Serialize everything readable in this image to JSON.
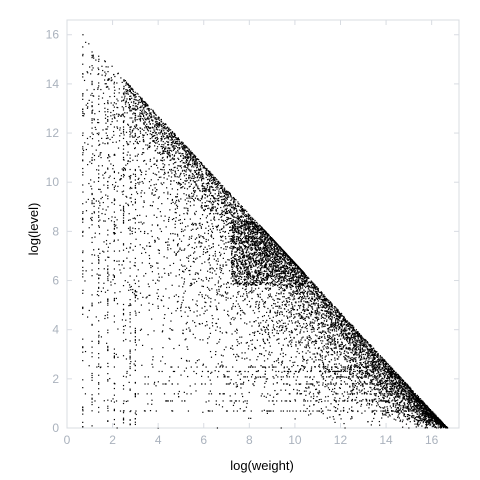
{
  "chart_data": {
    "type": "scatter",
    "title": "",
    "xlabel": "log(weight)",
    "ylabel": "log(level)",
    "xlim": [
      0,
      17.2
    ],
    "ylim": [
      0,
      16.6
    ],
    "xticks": [
      0,
      2,
      4,
      6,
      8,
      10,
      12,
      14,
      16
    ],
    "yticks": [
      0,
      2,
      4,
      6,
      8,
      10,
      12,
      14,
      16
    ],
    "xtick_labels": [
      "0",
      "2",
      "4",
      "6",
      "8",
      "10",
      "12",
      "14",
      "16"
    ],
    "ytick_labels": [
      "0",
      "2",
      "4",
      "6",
      "8",
      "10",
      "12",
      "14",
      "16"
    ],
    "grid": false,
    "marker_color": "#000000",
    "boundary": {
      "description": "points lie on or below the line",
      "x0": 0.7,
      "y0": 16.0,
      "x1": 16.7,
      "y1": 0.0
    },
    "dense_cluster_center": [
      8.8,
      7.1
    ],
    "column_stripes_x": [
      0.69,
      1.1,
      1.39,
      1.79,
      2.08,
      2.48,
      2.77,
      3.0
    ],
    "row_stripes_y": [
      0.69,
      1.1,
      1.39,
      1.79,
      2.08,
      2.3,
      2.48
    ],
    "series": [
      {
        "name": "",
        "points": [
          [
            0.7,
            16.0
          ],
          [
            0.7,
            15.2
          ],
          [
            0.7,
            14.4
          ],
          [
            0.7,
            13.6
          ],
          [
            0.7,
            12.8
          ],
          [
            0.7,
            12.0
          ],
          [
            0.7,
            11.2
          ],
          [
            0.7,
            10.4
          ],
          [
            0.7,
            9.6
          ],
          [
            0.7,
            8.8
          ],
          [
            0.7,
            8.0
          ],
          [
            0.7,
            7.2
          ],
          [
            0.7,
            6.4
          ],
          [
            0.7,
            5.6
          ],
          [
            1.1,
            15.3
          ],
          [
            1.1,
            14.1
          ],
          [
            1.1,
            12.9
          ],
          [
            1.1,
            11.0
          ],
          [
            1.1,
            9.5
          ],
          [
            1.1,
            6.7
          ],
          [
            1.1,
            2.9
          ],
          [
            1.4,
            15.0
          ],
          [
            1.4,
            13.5
          ],
          [
            1.4,
            12.0
          ],
          [
            1.4,
            11.5
          ],
          [
            1.4,
            6.8
          ],
          [
            1.4,
            3.5
          ],
          [
            1.8,
            14.5
          ],
          [
            1.8,
            13.2
          ],
          [
            1.8,
            11.8
          ],
          [
            1.8,
            9.0
          ],
          [
            1.8,
            6.0
          ],
          [
            1.8,
            2.5
          ],
          [
            2.1,
            14.3
          ],
          [
            2.1,
            12.6
          ],
          [
            2.1,
            11.1
          ],
          [
            2.1,
            8.2
          ],
          [
            2.1,
            5.5
          ],
          [
            2.1,
            1.8
          ],
          [
            2.5,
            13.9
          ],
          [
            2.5,
            12.5
          ],
          [
            2.5,
            10.9
          ],
          [
            2.5,
            8.8
          ],
          [
            2.5,
            6.5
          ],
          [
            2.5,
            4.0
          ],
          [
            2.5,
            1.1
          ],
          [
            2.8,
            13.5
          ],
          [
            2.8,
            12.0
          ],
          [
            2.8,
            10.0
          ],
          [
            2.8,
            7.5
          ],
          [
            2.8,
            5.0
          ],
          [
            2.8,
            2.7
          ],
          [
            2.8,
            0.7
          ],
          [
            3.0,
            13.2
          ],
          [
            3.0,
            11.4
          ],
          [
            3.0,
            9.3
          ],
          [
            3.0,
            6.9
          ],
          [
            3.0,
            3.9
          ],
          [
            3.0,
            1.4
          ],
          [
            0.7,
            0.7
          ],
          [
            1.1,
            0.7
          ],
          [
            1.8,
            0.7
          ],
          [
            2.5,
            0.7
          ],
          [
            3.4,
            0.7
          ],
          [
            4.6,
            0.7
          ],
          [
            6.2,
            0.7
          ],
          [
            7.8,
            0.7
          ],
          [
            2.2,
            0.0
          ],
          [
            4.0,
            0.0
          ],
          [
            6.6,
            0.0
          ],
          [
            9.4,
            0.0
          ],
          [
            12.2,
            0.0
          ],
          [
            15.0,
            0.0
          ],
          [
            16.4,
            0.0
          ]
        ]
      }
    ]
  }
}
